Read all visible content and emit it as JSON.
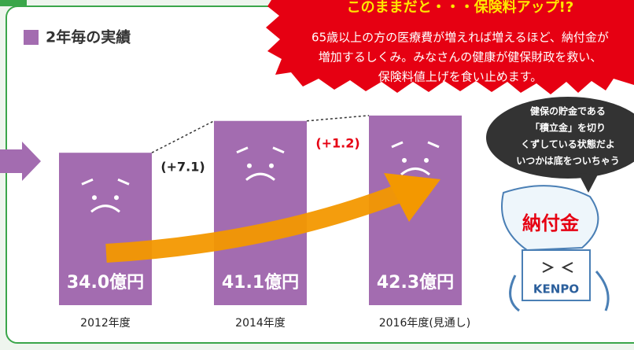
{
  "chart_data": {
    "type": "bar",
    "title": "2年毎の実績",
    "categories": [
      "2012年度",
      "2014年度",
      "2016年度(見通し)"
    ],
    "values": [
      34.0,
      41.1,
      42.3
    ],
    "value_labels": [
      "34.0億円",
      "41.1億円",
      "42.3億円"
    ],
    "color": "#a36cb0",
    "annotations": [
      {
        "text": "(+7.1)",
        "color": "#222222"
      },
      {
        "text": "(+1.2)",
        "color": "#e60012"
      }
    ]
  },
  "banner": {
    "title": "このままだと・・・保険料アップ!?",
    "lines": [
      "65歳以上の方の医療費が増えれば増えるほど、納付金が",
      "増加するしくみ。みなさんの健康が健保財政を救い、",
      "保険料値上げを食い止めます。"
    ]
  },
  "bubble": {
    "lines": [
      "健保の貯金である",
      "「積立金」を切り",
      "くずしている状態だよ",
      "いつかは底をついちゃう"
    ]
  },
  "character": {
    "bag": "納付金",
    "box": "KENPO"
  }
}
